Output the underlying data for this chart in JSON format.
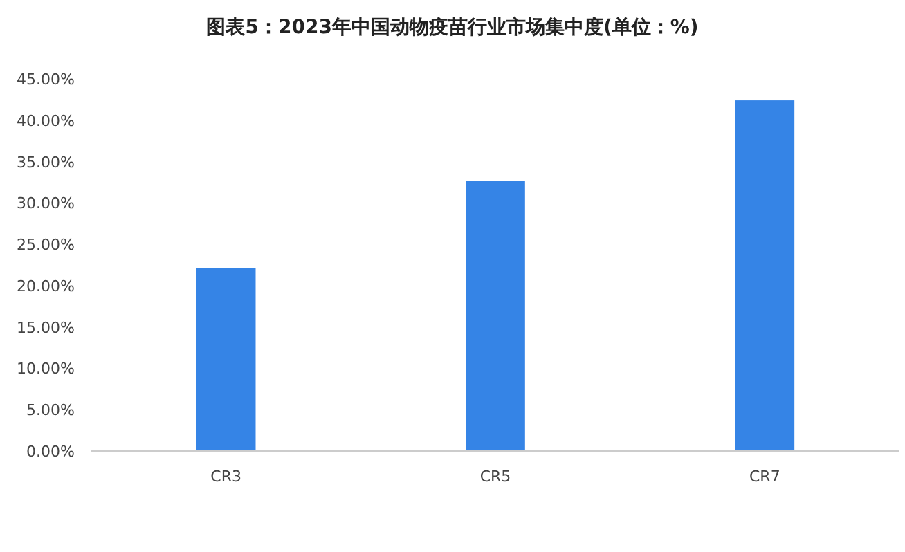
{
  "chart_data": {
    "type": "bar",
    "title": "图表5：2023年中国动物疫苗行业市场集中度(单位：%)",
    "categories": [
      "CR3",
      "CR5",
      "CR7"
    ],
    "values": [
      22.1,
      32.7,
      42.4
    ],
    "color": "#3584e6",
    "ylim": [
      0,
      45
    ],
    "yticks": [
      {
        "value": 0,
        "label": "0.00%"
      },
      {
        "value": 5,
        "label": "5.00%"
      },
      {
        "value": 10,
        "label": "10.00%"
      },
      {
        "value": 15,
        "label": "15.00%"
      },
      {
        "value": 20,
        "label": "20.00%"
      },
      {
        "value": 25,
        "label": "25.00%"
      },
      {
        "value": 30,
        "label": "30.00%"
      },
      {
        "value": 35,
        "label": "35.00%"
      },
      {
        "value": 40,
        "label": "40.00%"
      },
      {
        "value": 45,
        "label": "45.00%"
      }
    ],
    "grid": false
  }
}
